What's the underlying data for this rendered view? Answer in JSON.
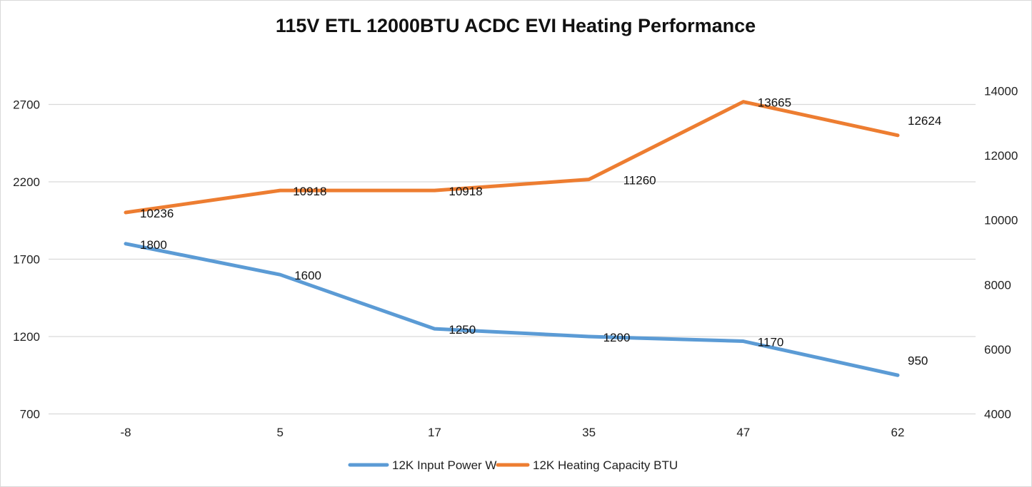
{
  "chart_data": {
    "type": "line",
    "title": "115V ETL 12000BTU ACDC EVI Heating Performance",
    "xlabel": "",
    "ylabel": "",
    "y2label": "",
    "categories": [
      "-8",
      "5",
      "17",
      "35",
      "47",
      "62"
    ],
    "series": [
      {
        "name": "12K Input Power W",
        "axis": "left",
        "color": "#5B9BD5",
        "values": [
          1800,
          1600,
          1250,
          1200,
          1170,
          950
        ],
        "labels": [
          "1800",
          "1600",
          "1250",
          "1200",
          "1170",
          "950"
        ]
      },
      {
        "name": "12K Heating Capacity BTU",
        "axis": "right",
        "color": "#ED7D31",
        "values": [
          10236,
          10918,
          10918,
          11260,
          13665,
          12624
        ],
        "labels": [
          "10236",
          "10918",
          "10918",
          "11260",
          "13665",
          "12624"
        ]
      }
    ],
    "y_left": {
      "ticks": [
        "700",
        "1200",
        "1700",
        "2200",
        "2700"
      ],
      "tick_values": [
        700,
        1200,
        1700,
        2200,
        2700
      ],
      "range": [
        700,
        2700
      ]
    },
    "y_right": {
      "ticks": [
        "4000",
        "6000",
        "8000",
        "10000",
        "12000",
        "14000"
      ],
      "tick_values": [
        4000,
        6000,
        8000,
        10000,
        12000,
        14000
      ],
      "range": [
        4000,
        14000
      ]
    },
    "grid": true,
    "gridline_color": "#d9d9d9",
    "legend_position": "bottom"
  }
}
